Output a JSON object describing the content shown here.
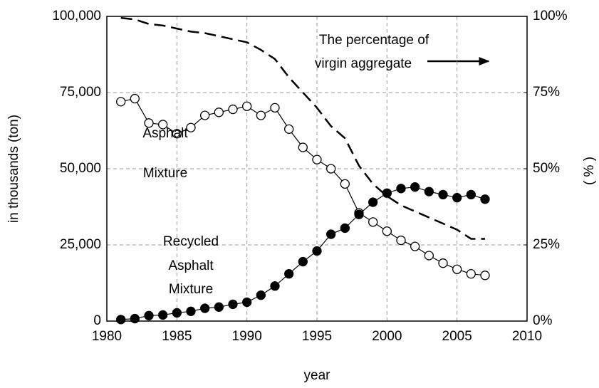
{
  "chart_data": {
    "type": "line",
    "x": [
      1981,
      1982,
      1983,
      1984,
      1985,
      1986,
      1987,
      1988,
      1989,
      1990,
      1991,
      1992,
      1993,
      1994,
      1995,
      1996,
      1997,
      1998,
      1999,
      2000,
      2001,
      2002,
      2003,
      2004,
      2005,
      2006,
      2007
    ],
    "series": [
      {
        "color": "#000000",
        "marker": "open-circle",
        "values": [
          72000,
          73000,
          65000,
          64500,
          61500,
          63500,
          67500,
          68500,
          69500,
          70500,
          67500,
          70000,
          63000,
          57000,
          53000,
          50000,
          45000,
          35500,
          32500,
          29500,
          26500,
          24500,
          21500,
          19000,
          17000,
          15500,
          15000
        ]
      },
      {
        "color": "#000000",
        "marker": "filled-circle",
        "values": [
          500,
          800,
          1800,
          2000,
          2700,
          3200,
          4200,
          4600,
          5500,
          6200,
          8500,
          11500,
          15500,
          19500,
          23000,
          28500,
          30500,
          35000,
          39000,
          42000,
          43500,
          44000,
          42500,
          41500,
          40500,
          41500,
          40000
        ]
      },
      {
        "color": "#000000",
        "marker": "dashed",
        "axis": "y2",
        "values": [
          99.5,
          99,
          97.5,
          97,
          96,
          95,
          94.5,
          93.5,
          92.5,
          91.5,
          89,
          86,
          80,
          75,
          70,
          64,
          60,
          51,
          45,
          41,
          38,
          36,
          34,
          32,
          30,
          27,
          27
        ]
      }
    ],
    "x_label": "year",
    "y_label": "in thousands (ton)",
    "y2_label": "( % )",
    "xlim": [
      1980,
      2010
    ],
    "xticks": [
      1980,
      1985,
      1990,
      1995,
      2000,
      2005,
      2010
    ],
    "ylim": [
      0,
      100000
    ],
    "yticks": [
      0,
      {
        "value": 25000,
        "label": "25,000"
      },
      {
        "value": 50000,
        "label": "50,000"
      },
      {
        "value": 75000,
        "label": "75,000"
      },
      {
        "value": 100000,
        "label": "100,000"
      }
    ],
    "y2lim": [
      0,
      100
    ],
    "y2ticks": [
      {
        "value": 0,
        "label": "0%"
      },
      {
        "value": 25,
        "label": "25%"
      },
      {
        "value": 50,
        "label": "50%"
      },
      {
        "value": 75,
        "label": "75%"
      },
      {
        "value": 100,
        "label": "100%"
      }
    ],
    "grid": true,
    "annotations": [
      {
        "lines": [
          "The percentage of",
          "virgin aggregate"
        ]
      },
      {
        "lines": [
          "Asphalt",
          "Mixture"
        ]
      },
      {
        "lines": [
          "Recycled",
          "Asphalt",
          "Mixture"
        ]
      }
    ]
  }
}
